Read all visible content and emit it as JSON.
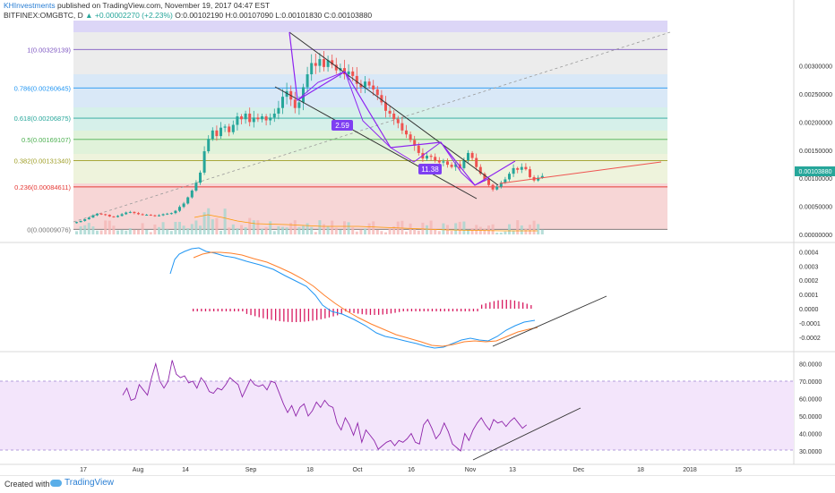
{
  "header": {
    "author": "KHInvestments",
    "published": "published on TradingView.com, November 19, 2017 04:47 EST",
    "symbol_line": "BITFINEX:OMGBTC, D",
    "change": "▲ +0.00002270 (+2.23%)",
    "ohlc": "O:0.00102190 H:0.00107090 L:0.00101830 C:0.00103880"
  },
  "footer": {
    "created": "Created with",
    "brand": "TradingView"
  },
  "colors": {
    "up": "#26a69a",
    "down": "#ef5350",
    "macd": "#2196f3",
    "signal": "#ff7f2a",
    "hist": "#d81b60",
    "rsi": "#8e24aa",
    "pattern": "#8e24f0"
  },
  "chart_data": {
    "type": "candlestick",
    "price_axis": [
      "0.00300000",
      "0.00250000",
      "0.00200000",
      "0.00150000",
      "0.00100000",
      "0.00050000",
      "0.00000000"
    ],
    "last_price_label": "0.00103880",
    "fib_levels": [
      {
        "label": "1(0.00329139)",
        "value": 0.00329139,
        "color": "#7e57c2"
      },
      {
        "label": "0.786(0.00260645)",
        "value": 0.00260645,
        "color": "#2196f3"
      },
      {
        "label": "0.618(0.00206875)",
        "value": 0.00206875,
        "color": "#26a69a"
      },
      {
        "label": "0.5(0.00169107)",
        "value": 0.00169107,
        "color": "#4caf50"
      },
      {
        "label": "0.382(0.00131340)",
        "value": 0.0013134,
        "color": "#9e9d24"
      },
      {
        "label": "0.236(0.00084611)",
        "value": 0.00084611,
        "color": "#e53935"
      },
      {
        "label": "0(0.00009076)",
        "value": 9.076e-05,
        "color": "#757575"
      }
    ],
    "pattern_labels": [
      "2.59",
      "11.38"
    ],
    "close": [
      0.00022,
      0.00024,
      0.00027,
      0.0003,
      0.00034,
      0.00037,
      0.00036,
      0.00035,
      0.00032,
      0.00031,
      0.00033,
      0.00036,
      0.00039,
      0.0004,
      0.00038,
      0.00036,
      0.00035,
      0.00035,
      0.00034,
      0.00033,
      0.00034,
      0.00036,
      0.00037,
      0.00038,
      0.00042,
      0.00049,
      0.00055,
      0.00066,
      0.00078,
      0.00092,
      0.0011,
      0.00148,
      0.0017,
      0.00185,
      0.00175,
      0.0019,
      0.00192,
      0.00182,
      0.00195,
      0.0021,
      0.00205,
      0.00215,
      0.002,
      0.00208,
      0.00205,
      0.0021,
      0.00203,
      0.00208,
      0.00215,
      0.00225,
      0.00245,
      0.00255,
      0.0024,
      0.00225,
      0.00235,
      0.00262,
      0.00285,
      0.00305,
      0.003,
      0.00312,
      0.00298,
      0.0031,
      0.00302,
      0.00292,
      0.00296,
      0.00285,
      0.0029,
      0.00282,
      0.00268,
      0.00262,
      0.00272,
      0.00265,
      0.00258,
      0.00248,
      0.00235,
      0.0022,
      0.00215,
      0.00205,
      0.00198,
      0.00185,
      0.00178,
      0.00168,
      0.00158,
      0.00145,
      0.00135,
      0.0014,
      0.00138,
      0.00132,
      0.00128,
      0.0013,
      0.00124,
      0.0012,
      0.00125,
      0.00118,
      0.00132,
      0.00145,
      0.00136,
      0.0012,
      0.00108,
      0.00098,
      0.00088,
      0.0008,
      0.00085,
      0.00092,
      0.00098,
      0.00108,
      0.00118,
      0.00115,
      0.0012,
      0.00116,
      0.00102,
      0.00096,
      0.00101,
      0.00104
    ],
    "macd_axis": [
      "0.0004",
      "0.0003",
      "0.0002",
      "0.0001",
      "0.0000",
      "-0.0001",
      "-0.0002"
    ],
    "rsi_axis": [
      "80.0000",
      "70.0000",
      "60.0000",
      "50.0000",
      "40.0000",
      "30.0000"
    ],
    "rsi": [
      62,
      66,
      59,
      60,
      68,
      65,
      62,
      72,
      80,
      70,
      66,
      70,
      82,
      74,
      72,
      73,
      69,
      70,
      66,
      72,
      69,
      64,
      63,
      66,
      65,
      68,
      72,
      70,
      68,
      61,
      66,
      71,
      68,
      67,
      68,
      65,
      70,
      69,
      63,
      57,
      52,
      56,
      50,
      55,
      57,
      50,
      53,
      58,
      55,
      59,
      56,
      55,
      46,
      42,
      49,
      45,
      39,
      46,
      35,
      42,
      39,
      36,
      31,
      33,
      35,
      36,
      33,
      36,
      35,
      37,
      40,
      35,
      34,
      45,
      48,
      43,
      37,
      40,
      46,
      41,
      34,
      32,
      30,
      40,
      36,
      42,
      46,
      49,
      45,
      42,
      48,
      46,
      47,
      44,
      47,
      49,
      46,
      43,
      45
    ],
    "x_axis": [
      "17",
      "Aug",
      "14",
      "Sep",
      "18",
      "Oct",
      "16",
      "Nov",
      "13",
      "Dec",
      "18",
      "2018",
      "15"
    ]
  }
}
